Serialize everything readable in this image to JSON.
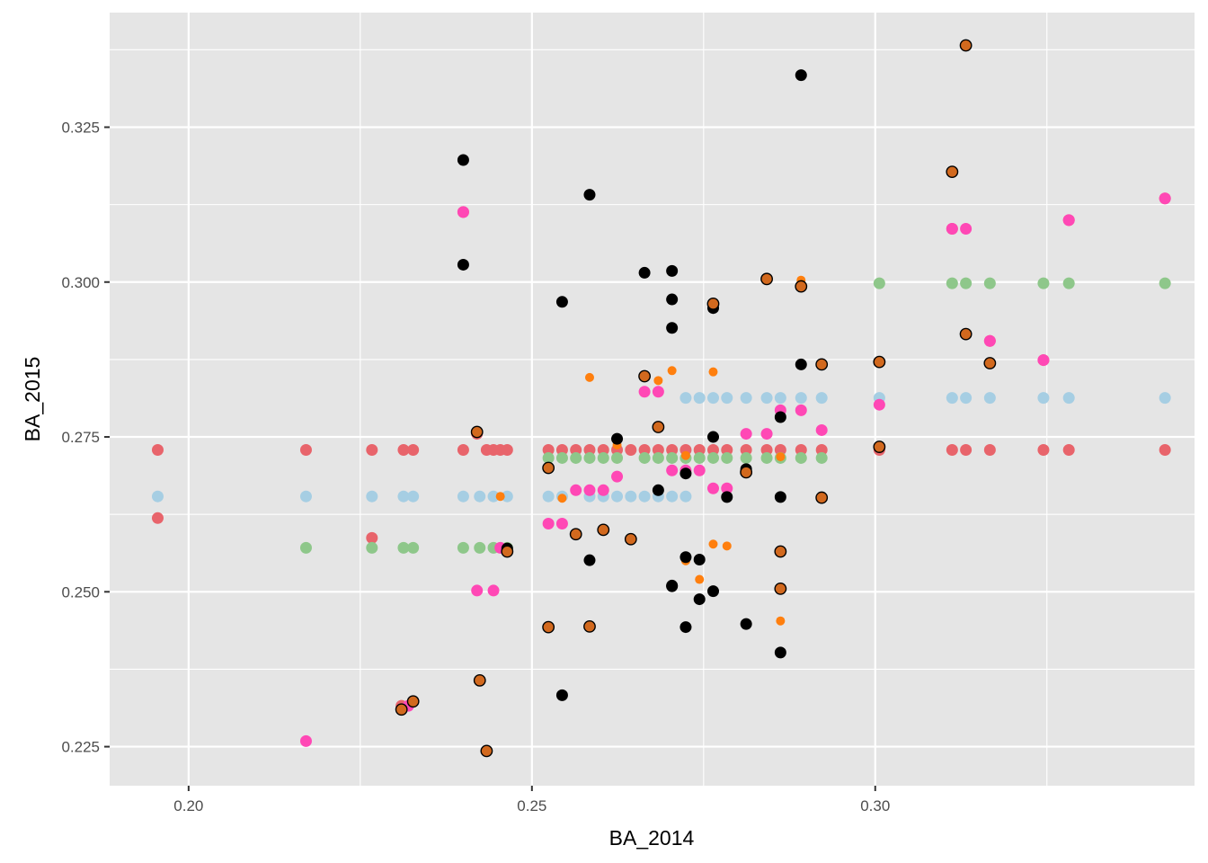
{
  "chart_data": {
    "type": "scatter",
    "title": "",
    "xlabel": "BA_2014",
    "ylabel": "BA_2015",
    "xlim": [
      0.1885,
      0.3465
    ],
    "ylim": [
      0.2187,
      0.3435
    ],
    "x_ticks": [
      0.2,
      0.25,
      0.3
    ],
    "x_tick_labels": [
      "0.20",
      "0.25",
      "0.30"
    ],
    "y_ticks": [
      0.225,
      0.25,
      0.275,
      0.3,
      0.325
    ],
    "y_tick_labels": [
      "0.225",
      "0.250",
      "0.275",
      "0.300",
      "0.325"
    ],
    "grid": true,
    "legend": "none",
    "colors": {
      "panel": "#e5e5e5",
      "grid": "#ffffff",
      "pink": "#ff48b5",
      "light_blue": "#a6cee3",
      "green": "#8ec78a",
      "red": "#e8646b",
      "orange": "#ff7f0e",
      "black": "#000000",
      "brown": "#d2691e"
    },
    "series": [
      {
        "marker": "circle",
        "color": "#e8646b",
        "points": [
          [
            0.1955,
            0.2729
          ],
          [
            0.2171,
            0.2729
          ],
          [
            0.2267,
            0.2729
          ],
          [
            0.2313,
            0.2729
          ],
          [
            0.2327,
            0.2729
          ],
          [
            0.24,
            0.2729
          ],
          [
            0.2434,
            0.2729
          ],
          [
            0.2444,
            0.2729
          ],
          [
            0.2454,
            0.2729
          ],
          [
            0.2464,
            0.2729
          ],
          [
            0.2524,
            0.2729
          ],
          [
            0.2544,
            0.2729
          ],
          [
            0.2564,
            0.2729
          ],
          [
            0.2584,
            0.2729
          ],
          [
            0.2604,
            0.2729
          ],
          [
            0.2624,
            0.2729
          ],
          [
            0.2644,
            0.2729
          ],
          [
            0.2664,
            0.2729
          ],
          [
            0.2684,
            0.2729
          ],
          [
            0.2704,
            0.2729
          ],
          [
            0.2724,
            0.2729
          ],
          [
            0.2744,
            0.2729
          ],
          [
            0.2764,
            0.2729
          ],
          [
            0.2784,
            0.2729
          ],
          [
            0.2812,
            0.2729
          ],
          [
            0.2842,
            0.2729
          ],
          [
            0.2862,
            0.2729
          ],
          [
            0.2892,
            0.2729
          ],
          [
            0.2922,
            0.2729
          ],
          [
            0.3006,
            0.2729
          ],
          [
            0.3112,
            0.2729
          ],
          [
            0.3132,
            0.2729
          ],
          [
            0.3167,
            0.2729
          ],
          [
            0.3245,
            0.2729
          ],
          [
            0.3282,
            0.2729
          ],
          [
            0.3422,
            0.2729
          ],
          [
            0.1955,
            0.2619
          ],
          [
            0.2267,
            0.2587
          ],
          [
            0.231,
            0.2316
          ],
          [
            0.24,
            0.3113
          ],
          [
            0.242,
            0.2755
          ],
          [
            0.3112,
            0.3086
          ],
          [
            0.3167,
            0.2905
          ],
          [
            0.3245,
            0.2874
          ],
          [
            0.3282,
            0.31
          ],
          [
            0.3422,
            0.3135
          ],
          [
            0.3006,
            0.2731
          ]
        ]
      },
      {
        "marker": "circle",
        "color": "#a6cee3",
        "points": [
          [
            0.1955,
            0.2654
          ],
          [
            0.2171,
            0.2654
          ],
          [
            0.2267,
            0.2654
          ],
          [
            0.2313,
            0.2654
          ],
          [
            0.2327,
            0.2654
          ],
          [
            0.24,
            0.2654
          ],
          [
            0.2424,
            0.2654
          ],
          [
            0.2444,
            0.2654
          ],
          [
            0.2464,
            0.2654
          ],
          [
            0.2524,
            0.2654
          ],
          [
            0.2544,
            0.2654
          ],
          [
            0.2584,
            0.2654
          ],
          [
            0.2604,
            0.2654
          ],
          [
            0.2624,
            0.2654
          ],
          [
            0.2644,
            0.2654
          ],
          [
            0.2664,
            0.2654
          ],
          [
            0.2684,
            0.2654
          ],
          [
            0.2704,
            0.2654
          ],
          [
            0.2724,
            0.2654
          ],
          [
            0.2724,
            0.2813
          ],
          [
            0.2744,
            0.2813
          ],
          [
            0.2764,
            0.2813
          ],
          [
            0.2784,
            0.2813
          ],
          [
            0.2812,
            0.2813
          ],
          [
            0.2842,
            0.2813
          ],
          [
            0.2862,
            0.2813
          ],
          [
            0.2892,
            0.2813
          ],
          [
            0.2922,
            0.2813
          ],
          [
            0.3006,
            0.2813
          ],
          [
            0.3112,
            0.2813
          ],
          [
            0.3132,
            0.2813
          ],
          [
            0.3167,
            0.2813
          ],
          [
            0.3245,
            0.2813
          ],
          [
            0.3282,
            0.2813
          ],
          [
            0.3422,
            0.2813
          ]
        ]
      },
      {
        "marker": "circle",
        "color": "#8ec78a",
        "points": [
          [
            0.2171,
            0.2571
          ],
          [
            0.2267,
            0.2571
          ],
          [
            0.2313,
            0.2571
          ],
          [
            0.2327,
            0.2571
          ],
          [
            0.24,
            0.2571
          ],
          [
            0.2424,
            0.2571
          ],
          [
            0.2444,
            0.2571
          ],
          [
            0.2464,
            0.2571
          ],
          [
            0.2524,
            0.2716
          ],
          [
            0.2544,
            0.2716
          ],
          [
            0.2564,
            0.2716
          ],
          [
            0.2584,
            0.2716
          ],
          [
            0.2604,
            0.2716
          ],
          [
            0.2624,
            0.2716
          ],
          [
            0.2664,
            0.2716
          ],
          [
            0.2684,
            0.2716
          ],
          [
            0.2704,
            0.2716
          ],
          [
            0.2724,
            0.2716
          ],
          [
            0.2744,
            0.2716
          ],
          [
            0.2764,
            0.2716
          ],
          [
            0.2784,
            0.2716
          ],
          [
            0.2812,
            0.2716
          ],
          [
            0.2842,
            0.2716
          ],
          [
            0.2862,
            0.2716
          ],
          [
            0.2892,
            0.2716
          ],
          [
            0.2922,
            0.2716
          ],
          [
            0.3006,
            0.2998
          ],
          [
            0.3112,
            0.2998
          ],
          [
            0.3132,
            0.2998
          ],
          [
            0.3167,
            0.2998
          ],
          [
            0.3245,
            0.2998
          ],
          [
            0.3282,
            0.2998
          ],
          [
            0.3422,
            0.2998
          ]
        ]
      },
      {
        "marker": "circle",
        "color": "#ff48b5",
        "points": [
          [
            0.2171,
            0.2259
          ],
          [
            0.232,
            0.2316
          ],
          [
            0.24,
            0.3113
          ],
          [
            0.242,
            0.2502
          ],
          [
            0.2444,
            0.2502
          ],
          [
            0.2454,
            0.2571
          ],
          [
            0.2524,
            0.261
          ],
          [
            0.2544,
            0.261
          ],
          [
            0.2564,
            0.2664
          ],
          [
            0.2584,
            0.2664
          ],
          [
            0.2604,
            0.2664
          ],
          [
            0.2624,
            0.2686
          ],
          [
            0.2664,
            0.2823
          ],
          [
            0.2684,
            0.2823
          ],
          [
            0.2704,
            0.2696
          ],
          [
            0.2724,
            0.2696
          ],
          [
            0.2744,
            0.2696
          ],
          [
            0.2764,
            0.2667
          ],
          [
            0.2784,
            0.2667
          ],
          [
            0.2812,
            0.2755
          ],
          [
            0.2842,
            0.2755
          ],
          [
            0.2862,
            0.2793
          ],
          [
            0.2892,
            0.2793
          ],
          [
            0.2922,
            0.2761
          ],
          [
            0.3006,
            0.2802
          ],
          [
            0.3112,
            0.3086
          ],
          [
            0.3132,
            0.3086
          ],
          [
            0.3167,
            0.2905
          ],
          [
            0.3245,
            0.2874
          ],
          [
            0.3282,
            0.31
          ],
          [
            0.3422,
            0.3135
          ]
        ]
      },
      {
        "marker": "circle",
        "color": "#ff7f0e",
        "points": [
          [
            0.231,
            0.231
          ],
          [
            0.2454,
            0.2654
          ],
          [
            0.2544,
            0.2651
          ],
          [
            0.2584,
            0.2846
          ],
          [
            0.2624,
            0.2737
          ],
          [
            0.2684,
            0.2841
          ],
          [
            0.2704,
            0.2857
          ],
          [
            0.2724,
            0.255
          ],
          [
            0.2724,
            0.272
          ],
          [
            0.2744,
            0.252
          ],
          [
            0.2764,
            0.2855
          ],
          [
            0.2764,
            0.2577
          ],
          [
            0.2784,
            0.2574
          ],
          [
            0.2862,
            0.2453
          ],
          [
            0.2862,
            0.2718
          ],
          [
            0.2892,
            0.3003
          ]
        ]
      },
      {
        "marker": "circle",
        "color": "#000000",
        "points": [
          [
            0.24,
            0.3197
          ],
          [
            0.24,
            0.3028
          ],
          [
            0.2544,
            0.2968
          ],
          [
            0.2584,
            0.3141
          ],
          [
            0.2664,
            0.3015
          ],
          [
            0.2704,
            0.3018
          ],
          [
            0.2704,
            0.2972
          ],
          [
            0.2704,
            0.2926
          ],
          [
            0.2764,
            0.2958
          ],
          [
            0.2892,
            0.3334
          ],
          [
            0.2892,
            0.2867
          ],
          [
            0.2544,
            0.2333
          ],
          [
            0.2584,
            0.2551
          ],
          [
            0.2624,
            0.2747
          ],
          [
            0.2684,
            0.2664
          ],
          [
            0.2704,
            0.251
          ],
          [
            0.2724,
            0.2691
          ],
          [
            0.2724,
            0.2556
          ],
          [
            0.2724,
            0.2443
          ],
          [
            0.2744,
            0.2552
          ],
          [
            0.2744,
            0.2488
          ],
          [
            0.2764,
            0.275
          ],
          [
            0.2764,
            0.2501
          ],
          [
            0.2784,
            0.2653
          ],
          [
            0.2812,
            0.2698
          ],
          [
            0.2812,
            0.2448
          ],
          [
            0.2862,
            0.2653
          ],
          [
            0.2862,
            0.2402
          ],
          [
            0.2862,
            0.2782
          ],
          [
            0.2464,
            0.257
          ],
          [
            0.2704,
            0.2509
          ]
        ]
      },
      {
        "marker": "circle",
        "color": "#d2691e",
        "points": [
          [
            0.2327,
            0.2323
          ],
          [
            0.231,
            0.231
          ],
          [
            0.242,
            0.2758
          ],
          [
            0.2424,
            0.2357
          ],
          [
            0.2434,
            0.2243
          ],
          [
            0.2464,
            0.2565
          ],
          [
            0.2524,
            0.27
          ],
          [
            0.2524,
            0.2443
          ],
          [
            0.2564,
            0.2593
          ],
          [
            0.2584,
            0.2444
          ],
          [
            0.2604,
            0.26
          ],
          [
            0.2644,
            0.2585
          ],
          [
            0.2664,
            0.2848
          ],
          [
            0.2684,
            0.2766
          ],
          [
            0.2764,
            0.2965
          ],
          [
            0.2842,
            0.3005
          ],
          [
            0.2862,
            0.2565
          ],
          [
            0.2862,
            0.2505
          ],
          [
            0.2892,
            0.2993
          ],
          [
            0.2922,
            0.2867
          ],
          [
            0.2812,
            0.2693
          ],
          [
            0.2922,
            0.2652
          ],
          [
            0.3006,
            0.2871
          ],
          [
            0.3006,
            0.2734
          ],
          [
            0.3112,
            0.3178
          ],
          [
            0.3132,
            0.3382
          ],
          [
            0.3132,
            0.2916
          ],
          [
            0.3167,
            0.2869
          ]
        ]
      }
    ]
  }
}
